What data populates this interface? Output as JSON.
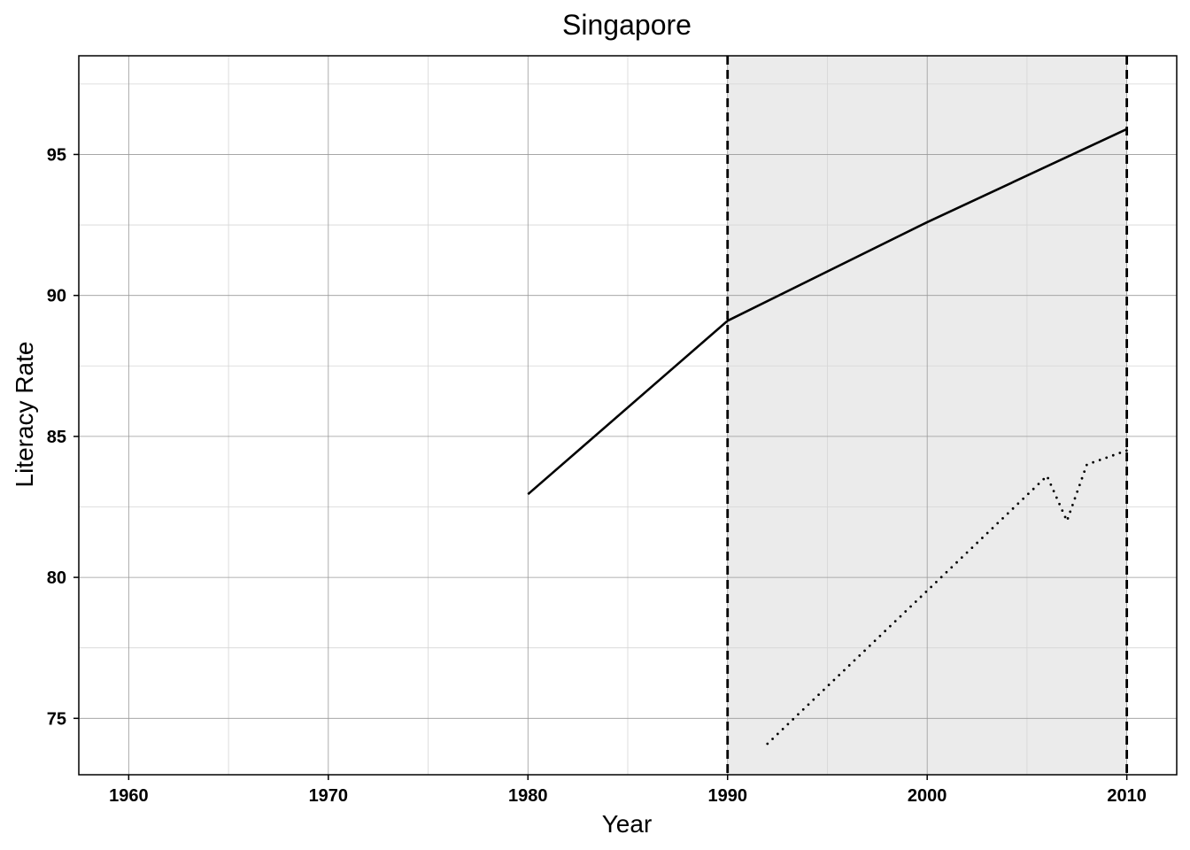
{
  "chart_data": {
    "type": "line",
    "title": "Singapore",
    "xlabel": "Year",
    "ylabel": "Literacy Rate",
    "xlim": [
      1957.5,
      2012.5
    ],
    "ylim": [
      73.0,
      98.5
    ],
    "x_ticks": [
      1960,
      1970,
      1980,
      1990,
      2000,
      2010
    ],
    "y_ticks": [
      75,
      80,
      85,
      90,
      95
    ],
    "x_minor_ticks": [
      1965,
      1975,
      1985,
      1995,
      2005
    ],
    "y_minor_ticks": [
      77.5,
      82.5,
      87.5,
      92.5,
      97.5
    ],
    "grid": true,
    "shaded_region": {
      "x_start": 1990,
      "x_end": 2010,
      "color": "#ebebeb"
    },
    "vertical_lines": [
      {
        "x": 1990,
        "style": "dashed"
      },
      {
        "x": 2010,
        "style": "dashed"
      }
    ],
    "series": [
      {
        "name": "solid",
        "style": "solid",
        "color": "#000000",
        "points": [
          {
            "x": 1980,
            "y": 82.95
          },
          {
            "x": 1990,
            "y": 89.1
          },
          {
            "x": 2000,
            "y": 92.6
          },
          {
            "x": 2010,
            "y": 95.9
          }
        ]
      },
      {
        "name": "dotted",
        "style": "dotted",
        "color": "#000000",
        "points": [
          {
            "x": 1992,
            "y": 74.1
          },
          {
            "x": 2006,
            "y": 83.6
          },
          {
            "x": 2007,
            "y": 82.0
          },
          {
            "x": 2008,
            "y": 84.0
          },
          {
            "x": 2010,
            "y": 84.5
          }
        ]
      }
    ]
  }
}
